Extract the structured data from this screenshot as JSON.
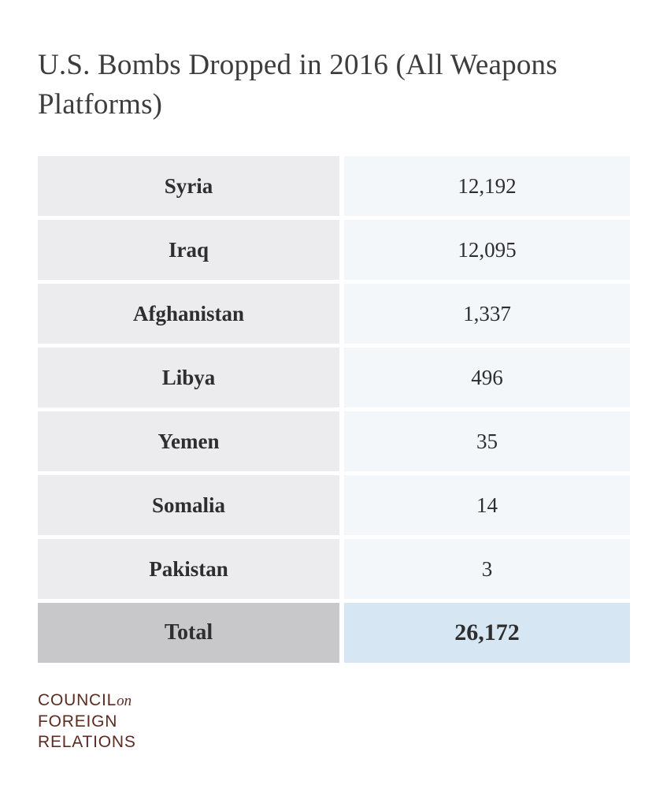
{
  "chart_data": {
    "type": "table",
    "title": "U.S. Bombs Dropped in 2016 (All Weapons Platforms)",
    "rows": [
      {
        "country": "Syria",
        "value": "12,192"
      },
      {
        "country": "Iraq",
        "value": "12,095"
      },
      {
        "country": "Afghanistan",
        "value": "1,337"
      },
      {
        "country": "Libya",
        "value": "496"
      },
      {
        "country": "Yemen",
        "value": "35"
      },
      {
        "country": "Somalia",
        "value": "14"
      },
      {
        "country": "Pakistan",
        "value": "3"
      }
    ],
    "total": {
      "label": "Total",
      "value": "26,172"
    }
  },
  "logo": {
    "line1": "COUNCIL",
    "line1_suffix": "on",
    "line2": "FOREIGN",
    "line3": "RELATIONS"
  },
  "colors": {
    "country_cell": "#ececee",
    "value_cell": "#f3f7fa",
    "total_country_cell": "#c8c8ca",
    "total_value_cell": "#d6e6f3",
    "logo": "#5c2b22"
  }
}
